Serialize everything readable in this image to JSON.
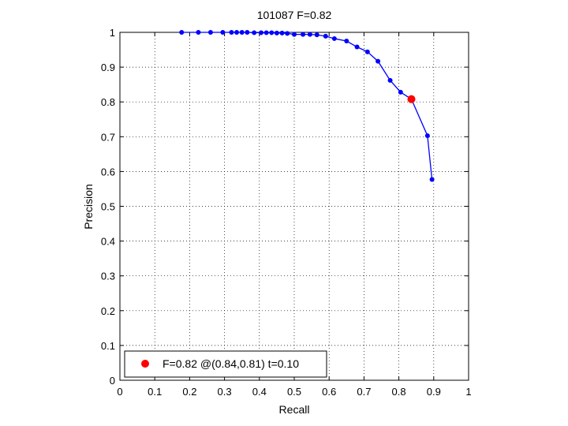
{
  "chart_data": {
    "type": "line",
    "title": "101087 F=0.82",
    "xlabel": "Recall",
    "ylabel": "Precision",
    "xlim": [
      0,
      1
    ],
    "ylim": [
      0,
      1
    ],
    "xticks": [
      "0",
      "0.1",
      "0.2",
      "0.3",
      "0.4",
      "0.5",
      "0.6",
      "0.7",
      "0.8",
      "0.9",
      "1"
    ],
    "yticks": [
      "0",
      "0.1",
      "0.2",
      "0.3",
      "0.4",
      "0.5",
      "0.6",
      "0.7",
      "0.8",
      "0.9",
      "1"
    ],
    "grid": true,
    "series": [
      {
        "color": "#0000ff",
        "marker": "dot",
        "points": [
          [
            0.177,
            1.0
          ],
          [
            0.225,
            1.0
          ],
          [
            0.26,
            1.0
          ],
          [
            0.295,
            1.0
          ],
          [
            0.32,
            1.0
          ],
          [
            0.335,
            1.0
          ],
          [
            0.35,
            1.0
          ],
          [
            0.365,
            1.0
          ],
          [
            0.385,
            0.999
          ],
          [
            0.405,
            0.999
          ],
          [
            0.42,
            0.999
          ],
          [
            0.435,
            0.999
          ],
          [
            0.45,
            0.998
          ],
          [
            0.465,
            0.998
          ],
          [
            0.48,
            0.997
          ],
          [
            0.5,
            0.994
          ],
          [
            0.525,
            0.994
          ],
          [
            0.545,
            0.994
          ],
          [
            0.565,
            0.993
          ],
          [
            0.59,
            0.989
          ],
          [
            0.615,
            0.982
          ],
          [
            0.65,
            0.975
          ],
          [
            0.68,
            0.958
          ],
          [
            0.71,
            0.944
          ],
          [
            0.74,
            0.917
          ],
          [
            0.775,
            0.862
          ],
          [
            0.805,
            0.828
          ],
          [
            0.836,
            0.808
          ],
          [
            0.882,
            0.703
          ],
          [
            0.895,
            0.577
          ]
        ]
      }
    ],
    "highlight": {
      "x": 0.836,
      "y": 0.808,
      "color": "#ff0000",
      "legend": "F=0.82 @(0.84,0.81) t=0.10"
    },
    "legend_placement": "bottom-left"
  }
}
